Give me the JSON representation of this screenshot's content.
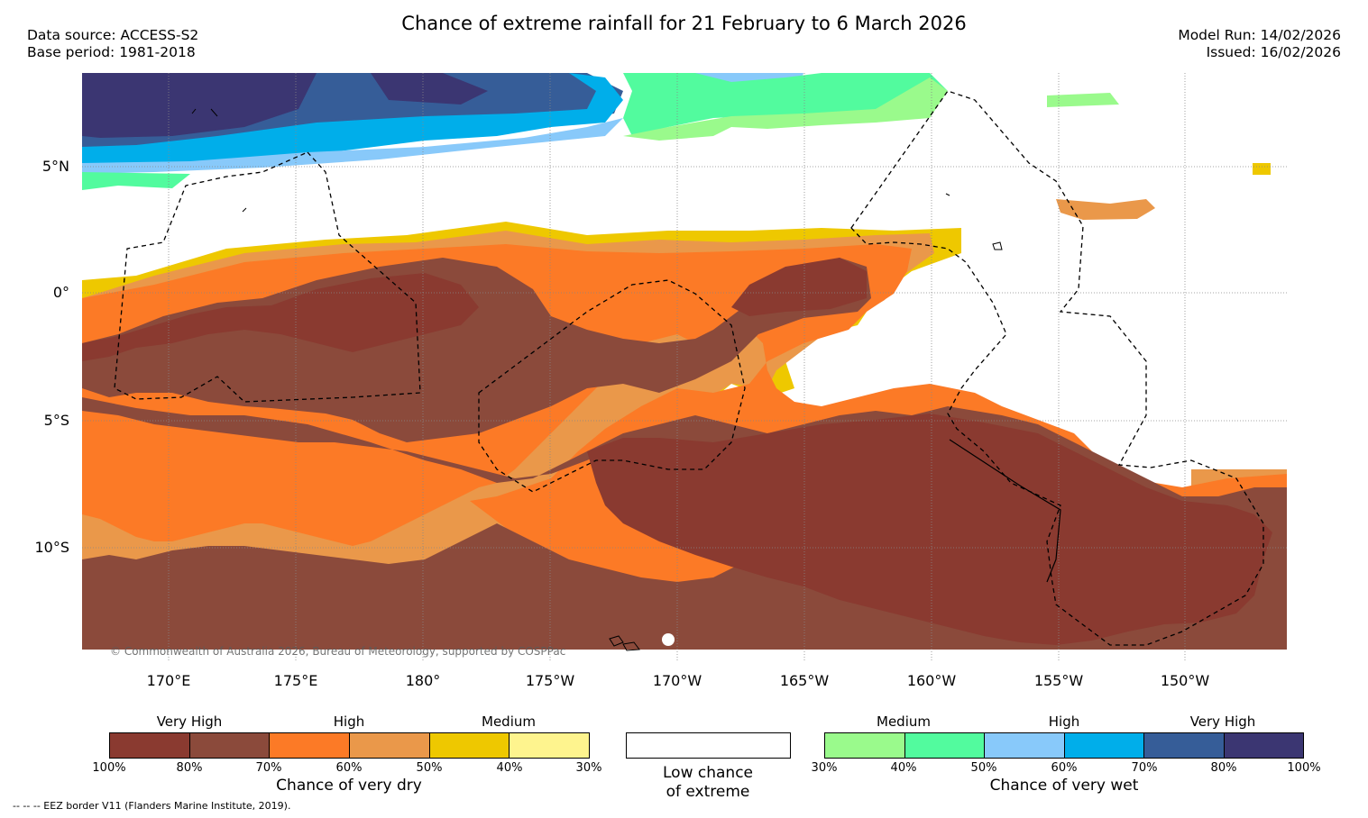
{
  "title": "Chance of extreme rainfall for 21 February to 6 March 2026",
  "info": {
    "data_source": "Data source: ACCESS-S2",
    "base_period": "Base period: 1981-2018",
    "model_run": "Model Run: 14/02/2026",
    "issued": "Issued: 16/02/2026"
  },
  "map": {
    "lat_labels": [
      "5°N",
      "0°",
      "5°S",
      "10°S"
    ],
    "lon_labels": [
      "170°E",
      "175°E",
      "180°",
      "175°W",
      "170°W",
      "165°W",
      "160°W",
      "155°W",
      "150°W"
    ],
    "copyright": "© Commonwealth of Australia 2026, Bureau of Meteorology, supported by COSPPac"
  },
  "legend": {
    "dry": {
      "headings": [
        "Very High",
        "High",
        "Medium"
      ],
      "ticks": [
        "100%",
        "80%",
        "70%",
        "60%",
        "50%",
        "40%",
        "30%"
      ],
      "colors": [
        "#8a3a30",
        "#8b4a3b",
        "#fc7a26",
        "#ea984a",
        "#eec800",
        "#fef48e"
      ],
      "title": "Chance of very dry"
    },
    "low": {
      "title_line1": "Low chance",
      "title_line2": "of extreme",
      "color": "#ffffff"
    },
    "wet": {
      "headings": [
        "Medium",
        "High",
        "Very High"
      ],
      "ticks": [
        "30%",
        "40%",
        "50%",
        "60%",
        "70%",
        "80%",
        "100%"
      ],
      "colors": [
        "#9afa8c",
        "#52fb9e",
        "#88c9fa",
        "#00aeea",
        "#365d98",
        "#3b3672"
      ],
      "title": "Chance of very wet"
    }
  },
  "footnote": "--  --  -- EEZ border V11 (Flanders Marine Institute, 2019)."
}
